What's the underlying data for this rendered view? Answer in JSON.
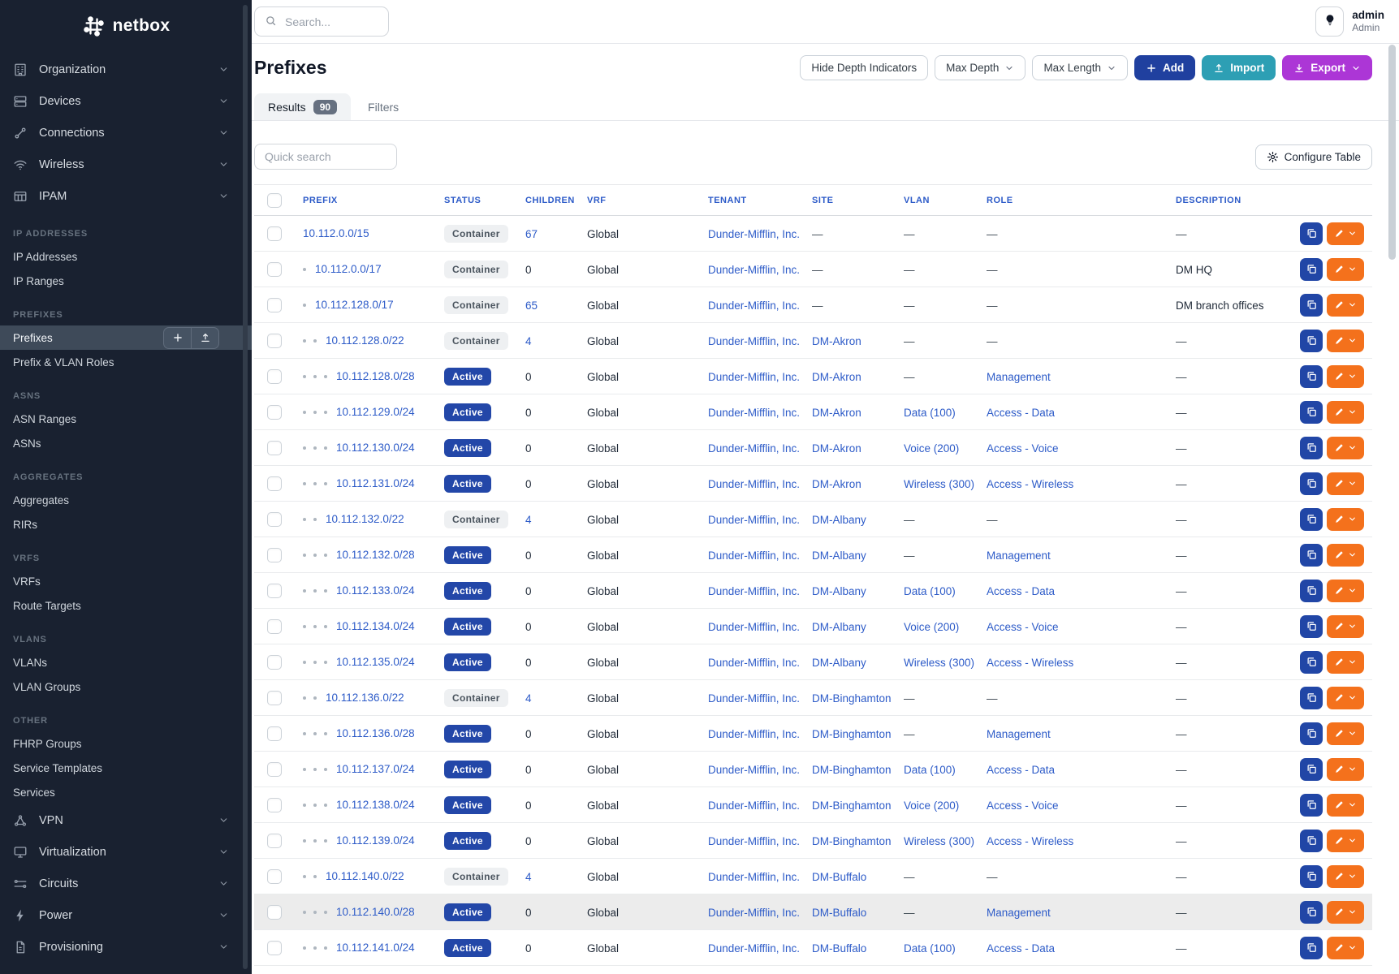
{
  "sidebar": {
    "logo_text": "netbox",
    "top_groups": [
      {
        "label": "Organization",
        "icon": "building-icon"
      },
      {
        "label": "Devices",
        "icon": "server-icon"
      },
      {
        "label": "Connections",
        "icon": "cable-icon"
      },
      {
        "label": "Wireless",
        "icon": "wifi-icon"
      },
      {
        "label": "IPAM",
        "icon": "ipam-icon"
      }
    ],
    "sections": [
      {
        "heading": "IP ADDRESSES",
        "items": [
          "IP Addresses",
          "IP Ranges"
        ]
      },
      {
        "heading": "PREFIXES",
        "items": [
          "Prefixes",
          "Prefix & VLAN Roles"
        ]
      },
      {
        "heading": "ASNS",
        "items": [
          "ASN Ranges",
          "ASNs"
        ]
      },
      {
        "heading": "AGGREGATES",
        "items": [
          "Aggregates",
          "RIRs"
        ]
      },
      {
        "heading": "VRFS",
        "items": [
          "VRFs",
          "Route Targets"
        ]
      },
      {
        "heading": "VLANS",
        "items": [
          "VLANs",
          "VLAN Groups"
        ]
      },
      {
        "heading": "OTHER",
        "items": [
          "FHRP Groups",
          "Service Templates",
          "Services"
        ]
      }
    ],
    "active_item": "Prefixes",
    "active_item_actions": [
      "plus-icon",
      "upload-icon"
    ],
    "bottom_groups": [
      {
        "label": "VPN",
        "icon": "vpn-icon"
      },
      {
        "label": "Virtualization",
        "icon": "monitor-icon"
      },
      {
        "label": "Circuits",
        "icon": "circuits-icon"
      },
      {
        "label": "Power",
        "icon": "power-icon"
      },
      {
        "label": "Provisioning",
        "icon": "document-icon"
      }
    ]
  },
  "topbar": {
    "search_placeholder": "Search...",
    "user_name": "admin",
    "user_role": "Admin"
  },
  "page_header": {
    "title": "Prefixes",
    "hide_depth_label": "Hide Depth Indicators",
    "max_depth_label": "Max Depth",
    "max_length_label": "Max Length",
    "add_label": "Add",
    "import_label": "Import",
    "export_label": "Export"
  },
  "tabs": {
    "results_label": "Results",
    "results_count": "90",
    "filters_label": "Filters"
  },
  "toolbar": {
    "quick_search_placeholder": "Quick search",
    "configure_table_label": "Configure Table"
  },
  "colors": {
    "link_blue": "#2d5bc8",
    "active_badge_bg": "#2347a8",
    "container_badge_bg": "#eef0f2",
    "add_button_bg": "#20409f",
    "import_button_bg": "#2d9fb4",
    "export_button_bg": "#ac36d6",
    "edit_button_bg": "#f4711c",
    "copy_button_bg": "#2146a6",
    "sidebar_bg": "#192130",
    "sidebar_active_bg": "#3e4a59",
    "row_highlight_bg": "#ececec"
  },
  "table": {
    "em_dash": "—",
    "columns": [
      "PREFIX",
      "STATUS",
      "CHILDREN",
      "VRF",
      "TENANT",
      "SITE",
      "VLAN",
      "ROLE",
      "DESCRIPTION"
    ],
    "row_action_icons": [
      "copy-icon",
      "edit-icon",
      "caret-down-small-icon"
    ],
    "rows": [
      {
        "depth": 0,
        "prefix": "10.112.0.0/15",
        "status": "Container",
        "children": "67",
        "vrf": "Global",
        "tenant": "Dunder-Mifflin, Inc.",
        "site": null,
        "vlan": null,
        "role": null,
        "description": null
      },
      {
        "depth": 1,
        "prefix": "10.112.0.0/17",
        "status": "Container",
        "children": "0",
        "vrf": "Global",
        "tenant": "Dunder-Mifflin, Inc.",
        "site": null,
        "vlan": null,
        "role": null,
        "description": "DM HQ"
      },
      {
        "depth": 1,
        "prefix": "10.112.128.0/17",
        "status": "Container",
        "children": "65",
        "vrf": "Global",
        "tenant": "Dunder-Mifflin, Inc.",
        "site": null,
        "vlan": null,
        "role": null,
        "description": "DM branch offices"
      },
      {
        "depth": 2,
        "prefix": "10.112.128.0/22",
        "status": "Container",
        "children": "4",
        "vrf": "Global",
        "tenant": "Dunder-Mifflin, Inc.",
        "site": "DM-Akron",
        "vlan": null,
        "role": null,
        "description": null
      },
      {
        "depth": 3,
        "prefix": "10.112.128.0/28",
        "status": "Active",
        "children": "0",
        "vrf": "Global",
        "tenant": "Dunder-Mifflin, Inc.",
        "site": "DM-Akron",
        "vlan": null,
        "role": "Management",
        "description": null
      },
      {
        "depth": 3,
        "prefix": "10.112.129.0/24",
        "status": "Active",
        "children": "0",
        "vrf": "Global",
        "tenant": "Dunder-Mifflin, Inc.",
        "site": "DM-Akron",
        "vlan": "Data (100)",
        "role": "Access - Data",
        "description": null
      },
      {
        "depth": 3,
        "prefix": "10.112.130.0/24",
        "status": "Active",
        "children": "0",
        "vrf": "Global",
        "tenant": "Dunder-Mifflin, Inc.",
        "site": "DM-Akron",
        "vlan": "Voice (200)",
        "role": "Access - Voice",
        "description": null
      },
      {
        "depth": 3,
        "prefix": "10.112.131.0/24",
        "status": "Active",
        "children": "0",
        "vrf": "Global",
        "tenant": "Dunder-Mifflin, Inc.",
        "site": "DM-Akron",
        "vlan": "Wireless (300)",
        "role": "Access - Wireless",
        "description": null
      },
      {
        "depth": 2,
        "prefix": "10.112.132.0/22",
        "status": "Container",
        "children": "4",
        "vrf": "Global",
        "tenant": "Dunder-Mifflin, Inc.",
        "site": "DM-Albany",
        "vlan": null,
        "role": null,
        "description": null
      },
      {
        "depth": 3,
        "prefix": "10.112.132.0/28",
        "status": "Active",
        "children": "0",
        "vrf": "Global",
        "tenant": "Dunder-Mifflin, Inc.",
        "site": "DM-Albany",
        "vlan": null,
        "role": "Management",
        "description": null
      },
      {
        "depth": 3,
        "prefix": "10.112.133.0/24",
        "status": "Active",
        "children": "0",
        "vrf": "Global",
        "tenant": "Dunder-Mifflin, Inc.",
        "site": "DM-Albany",
        "vlan": "Data (100)",
        "role": "Access - Data",
        "description": null
      },
      {
        "depth": 3,
        "prefix": "10.112.134.0/24",
        "status": "Active",
        "children": "0",
        "vrf": "Global",
        "tenant": "Dunder-Mifflin, Inc.",
        "site": "DM-Albany",
        "vlan": "Voice (200)",
        "role": "Access - Voice",
        "description": null
      },
      {
        "depth": 3,
        "prefix": "10.112.135.0/24",
        "status": "Active",
        "children": "0",
        "vrf": "Global",
        "tenant": "Dunder-Mifflin, Inc.",
        "site": "DM-Albany",
        "vlan": "Wireless (300)",
        "role": "Access - Wireless",
        "description": null
      },
      {
        "depth": 2,
        "prefix": "10.112.136.0/22",
        "status": "Container",
        "children": "4",
        "vrf": "Global",
        "tenant": "Dunder-Mifflin, Inc.",
        "site": "DM-Binghamton",
        "vlan": null,
        "role": null,
        "description": null
      },
      {
        "depth": 3,
        "prefix": "10.112.136.0/28",
        "status": "Active",
        "children": "0",
        "vrf": "Global",
        "tenant": "Dunder-Mifflin, Inc.",
        "site": "DM-Binghamton",
        "vlan": null,
        "role": "Management",
        "description": null
      },
      {
        "depth": 3,
        "prefix": "10.112.137.0/24",
        "status": "Active",
        "children": "0",
        "vrf": "Global",
        "tenant": "Dunder-Mifflin, Inc.",
        "site": "DM-Binghamton",
        "vlan": "Data (100)",
        "role": "Access - Data",
        "description": null
      },
      {
        "depth": 3,
        "prefix": "10.112.138.0/24",
        "status": "Active",
        "children": "0",
        "vrf": "Global",
        "tenant": "Dunder-Mifflin, Inc.",
        "site": "DM-Binghamton",
        "vlan": "Voice (200)",
        "role": "Access - Voice",
        "description": null
      },
      {
        "depth": 3,
        "prefix": "10.112.139.0/24",
        "status": "Active",
        "children": "0",
        "vrf": "Global",
        "tenant": "Dunder-Mifflin, Inc.",
        "site": "DM-Binghamton",
        "vlan": "Wireless (300)",
        "role": "Access - Wireless",
        "description": null
      },
      {
        "depth": 2,
        "prefix": "10.112.140.0/22",
        "status": "Container",
        "children": "4",
        "vrf": "Global",
        "tenant": "Dunder-Mifflin, Inc.",
        "site": "DM-Buffalo",
        "vlan": null,
        "role": null,
        "description": null
      },
      {
        "depth": 3,
        "prefix": "10.112.140.0/28",
        "status": "Active",
        "children": "0",
        "vrf": "Global",
        "tenant": "Dunder-Mifflin, Inc.",
        "site": "DM-Buffalo",
        "vlan": null,
        "role": "Management",
        "description": null,
        "highlighted": true
      },
      {
        "depth": 3,
        "prefix": "10.112.141.0/24",
        "status": "Active",
        "children": "0",
        "vrf": "Global",
        "tenant": "Dunder-Mifflin, Inc.",
        "site": "DM-Buffalo",
        "vlan": "Data (100)",
        "role": "Access - Data",
        "description": null
      }
    ]
  }
}
